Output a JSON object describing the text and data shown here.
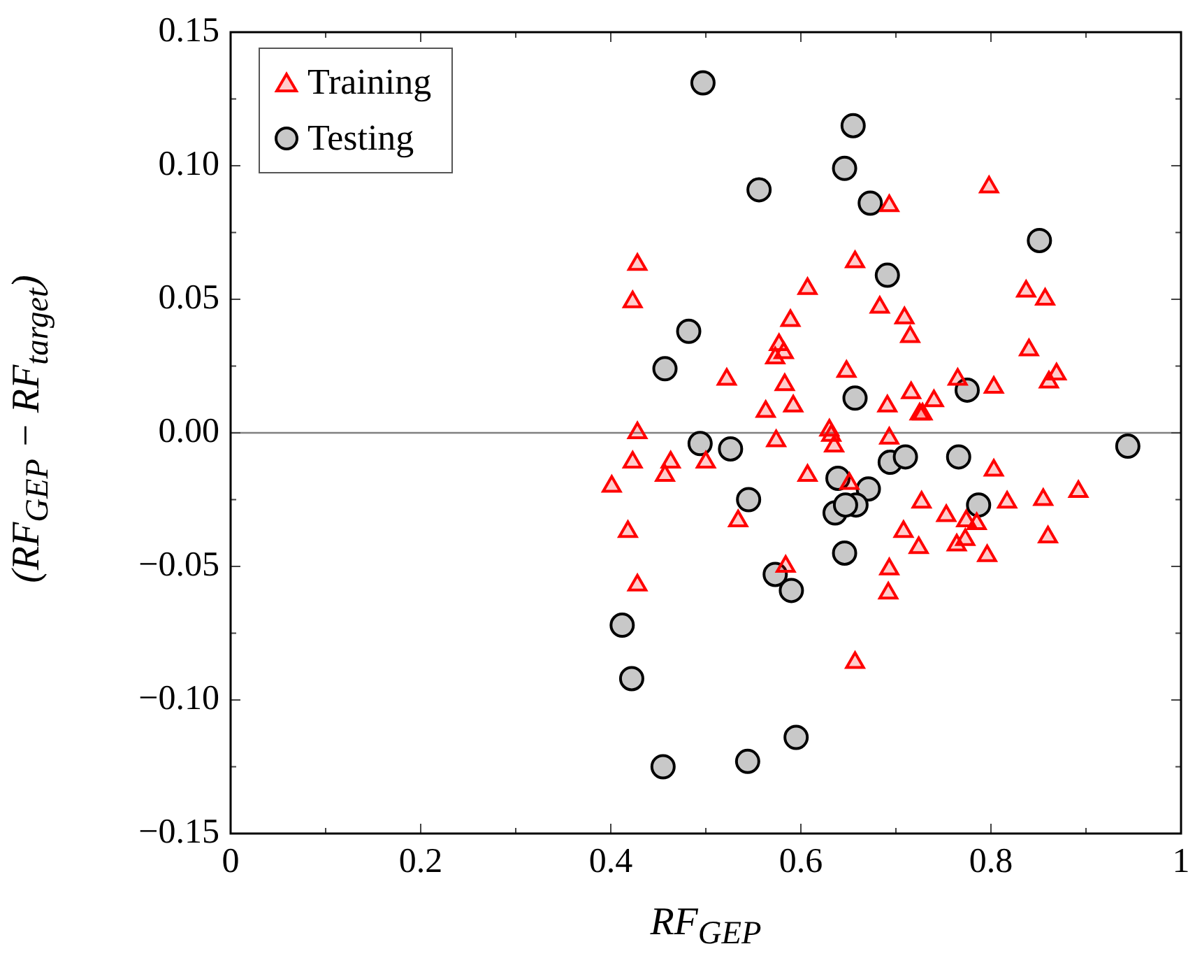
{
  "chart_data": {
    "type": "scatter",
    "xlabel": "RF$_{GEP}$",
    "ylabel": "(RF$_{GEP}$ − RF$_{target}$)",
    "xlim": [
      0,
      1
    ],
    "ylim": [
      -0.15,
      0.15
    ],
    "xticks": [
      0,
      {
        "value": 0.1,
        "label": null
      },
      0.2,
      {
        "value": 0.3,
        "label": null
      },
      0.4,
      {
        "value": 0.5,
        "label": null
      },
      0.6,
      {
        "value": 0.7,
        "label": null
      },
      0.8,
      {
        "value": 0.9,
        "label": null
      },
      1
    ],
    "yticks": [
      {
        "value": -0.15,
        "label": "−0.15"
      },
      {
        "value": -0.125,
        "label": null
      },
      {
        "value": -0.1,
        "label": "−0.10"
      },
      {
        "value": -0.075,
        "label": null
      },
      {
        "value": -0.05,
        "label": "−0.05"
      },
      {
        "value": -0.025,
        "label": null
      },
      {
        "value": 0,
        "label": "0.00"
      },
      {
        "value": 0.025,
        "label": null
      },
      {
        "value": 0.05,
        "label": "0.05"
      },
      {
        "value": 0.075,
        "label": null
      },
      {
        "value": 0.1,
        "label": "0.10"
      },
      {
        "value": 0.125,
        "label": null
      },
      {
        "value": 0.15,
        "label": "0.15"
      }
    ],
    "grid": false,
    "legend": "top left",
    "ref_lines": [
      {
        "axis": "y",
        "value": 0,
        "color": "#808080"
      }
    ],
    "series": [
      {
        "name": "Training",
        "color": "#ff0000",
        "marker": "triangle",
        "x": [
          0.428,
          0.423,
          0.657,
          0.607,
          0.589,
          0.577,
          0.582,
          0.573,
          0.648,
          0.522,
          0.583,
          0.592,
          0.563,
          0.428,
          0.63,
          0.632,
          0.635,
          0.574,
          0.423,
          0.463,
          0.457,
          0.5,
          0.401,
          0.607,
          0.651,
          0.798,
          0.693,
          0.837,
          0.857,
          0.683,
          0.709,
          0.715,
          0.84,
          0.765,
          0.869,
          0.861,
          0.803,
          0.716,
          0.74,
          0.691,
          0.725,
          0.728,
          0.693,
          0.803,
          0.534,
          0.418,
          0.584,
          0.428,
          0.657,
          0.727,
          0.753,
          0.774,
          0.785,
          0.817,
          0.855,
          0.892,
          0.708,
          0.724,
          0.764,
          0.773,
          0.796,
          0.86,
          0.693,
          0.692
        ],
        "values": [
          0.063,
          0.049,
          0.064,
          0.054,
          0.042,
          0.033,
          0.03,
          0.028,
          0.023,
          0.02,
          0.018,
          0.01,
          0.008,
          0.0,
          0.001,
          -0.001,
          -0.005,
          -0.003,
          -0.011,
          -0.011,
          -0.016,
          -0.011,
          -0.02,
          -0.016,
          -0.019,
          0.092,
          0.085,
          0.053,
          0.05,
          0.047,
          0.043,
          0.036,
          0.031,
          0.02,
          0.022,
          0.019,
          0.017,
          0.015,
          0.012,
          0.01,
          0.007,
          0.007,
          -0.002,
          -0.014,
          -0.033,
          -0.037,
          -0.05,
          -0.057,
          -0.086,
          -0.026,
          -0.031,
          -0.033,
          -0.034,
          -0.026,
          -0.025,
          -0.022,
          -0.037,
          -0.043,
          -0.042,
          -0.04,
          -0.046,
          -0.039,
          -0.051,
          -0.06
        ]
      },
      {
        "name": "Testing",
        "color": "#c8c8c8",
        "marker": "circle",
        "x": [
          0.497,
          0.655,
          0.556,
          0.646,
          0.673,
          0.851,
          0.691,
          0.482,
          0.457,
          0.657,
          0.775,
          0.494,
          0.526,
          0.944,
          0.694,
          0.71,
          0.766,
          0.639,
          0.671,
          0.545,
          0.658,
          0.636,
          0.787,
          0.646,
          0.573,
          0.59,
          0.412,
          0.422,
          0.595,
          0.544,
          0.455,
          0.647
        ],
        "values": [
          0.131,
          0.115,
          0.091,
          0.099,
          0.086,
          0.072,
          0.059,
          0.038,
          0.024,
          0.013,
          0.016,
          -0.004,
          -0.006,
          -0.005,
          -0.011,
          -0.009,
          -0.009,
          -0.017,
          -0.021,
          -0.025,
          -0.027,
          -0.03,
          -0.027,
          -0.045,
          -0.053,
          -0.059,
          -0.072,
          -0.092,
          -0.114,
          -0.123,
          -0.125,
          -0.027
        ]
      }
    ]
  }
}
